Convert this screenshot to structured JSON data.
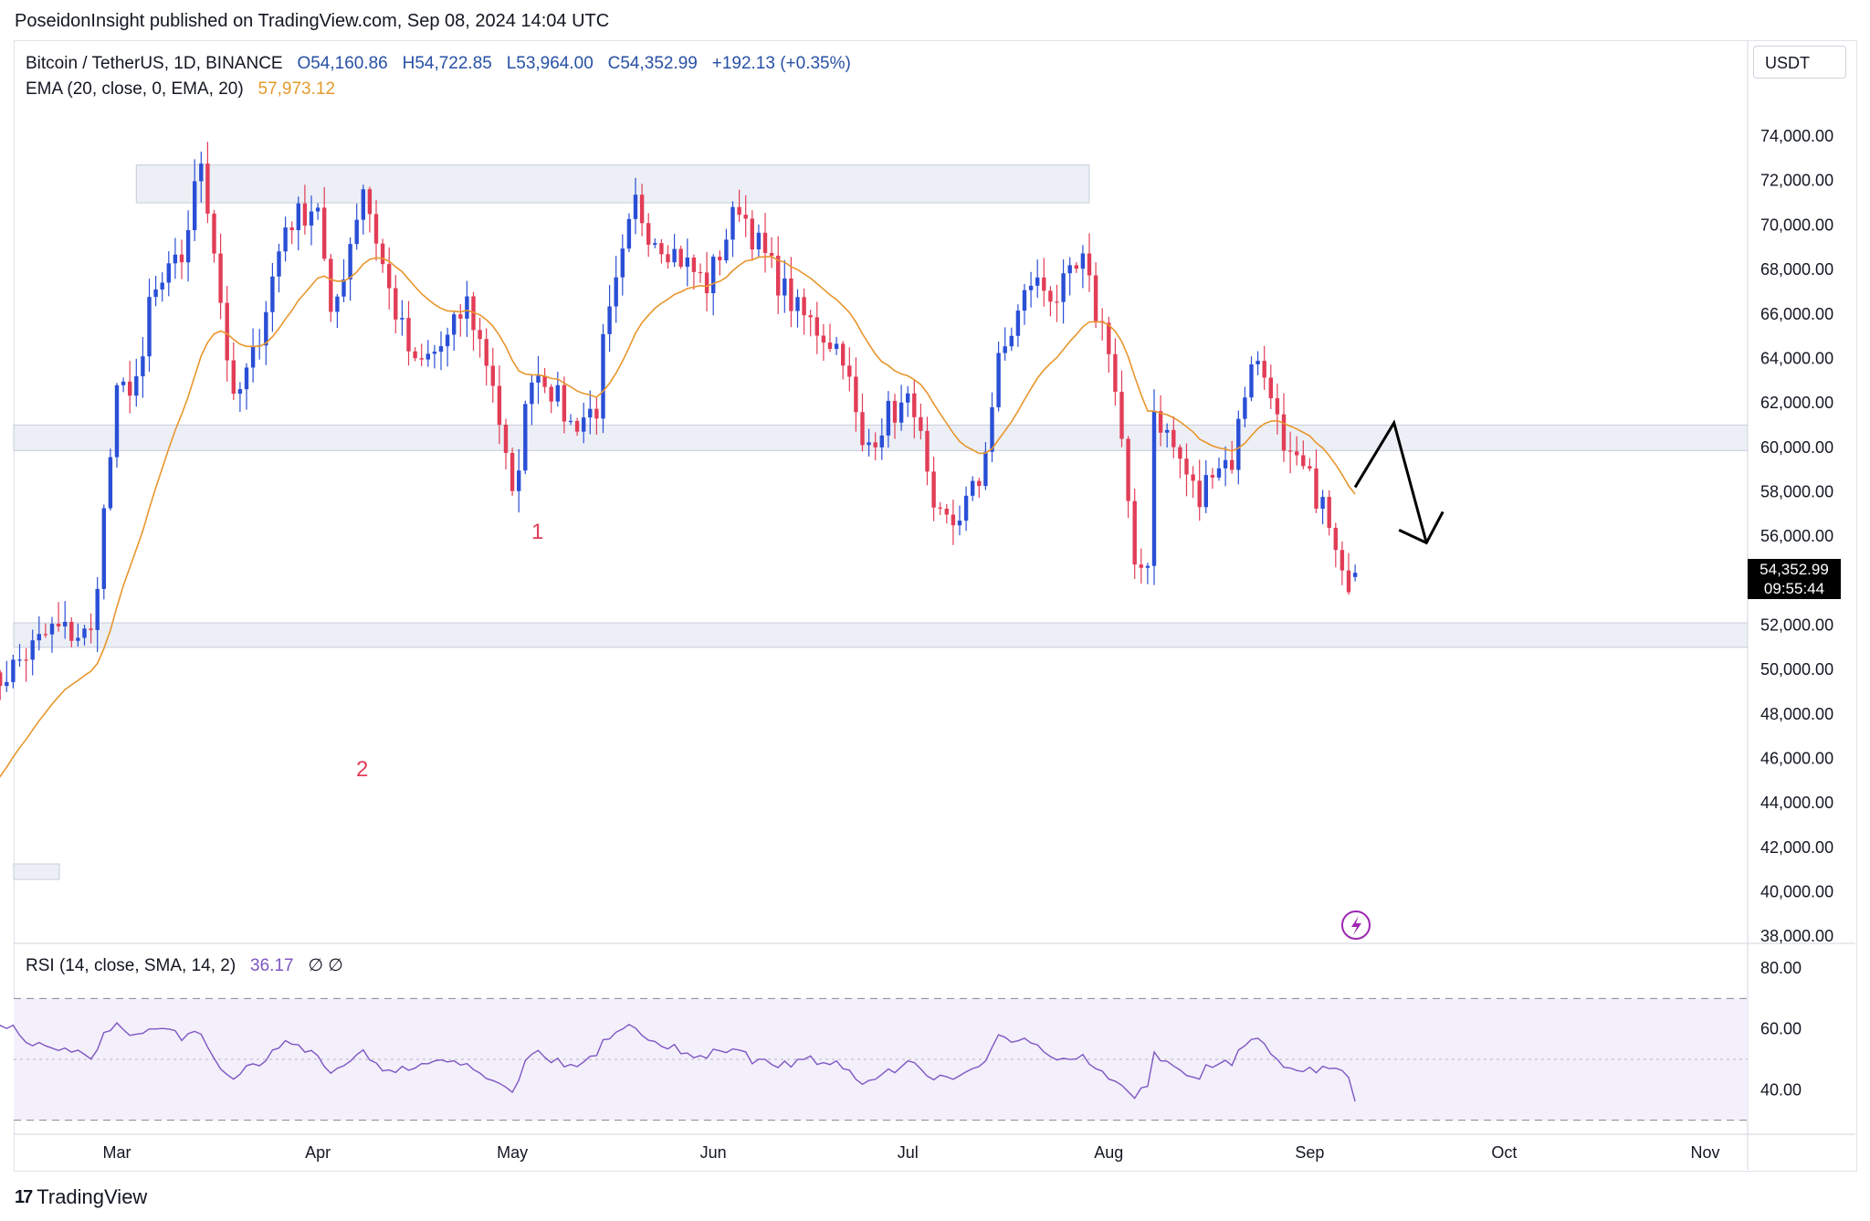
{
  "header": {
    "publisher_line": "PoseidonInsight published on TradingView.com, Sep 08, 2024 14:04 UTC"
  },
  "legend": {
    "symbol": "Bitcoin / TetherUS, 1D, BINANCE",
    "open": "O54,160.86",
    "high": "H54,722.85",
    "low": "L53,964.00",
    "close": "C54,352.99",
    "change": "+192.13 (+0.35%)",
    "ema_label": "EMA (20, close, 0, EMA, 20)",
    "ema_value": "57,973.12"
  },
  "rsi_legend": {
    "label": "RSI (14, close, SMA, 14, 2)",
    "value": "36.17",
    "extra": "∅ ∅"
  },
  "currency": "USDT",
  "price_tag": {
    "price": "54,352.99",
    "countdown": "09:55:44"
  },
  "annotations": {
    "label_1": "1",
    "label_2": "2"
  },
  "footer": {
    "logo_mark": "17",
    "brand": "TradingView"
  },
  "colors": {
    "up": "#2a4fd6",
    "down": "#e23d57",
    "ema": "#e8962e",
    "rsi": "#7e57c2",
    "zone": "#eceff6"
  },
  "chart_data": [
    {
      "type": "candlestick",
      "timeframe": "1D",
      "y_axis_ticks": [
        "74,000.00",
        "72,000.00",
        "70,000.00",
        "68,000.00",
        "66,000.00",
        "64,000.00",
        "62,000.00",
        "60,000.00",
        "58,000.00",
        "56,000.00",
        "54,000.00",
        "52,000.00",
        "50,000.00",
        "48,000.00",
        "46,000.00",
        "44,000.00",
        "42,000.00",
        "40,000.00",
        "38,000.00"
      ],
      "y_tick_values": [
        74000,
        72000,
        70000,
        68000,
        66000,
        64000,
        62000,
        60000,
        58000,
        56000,
        54000,
        52000,
        50000,
        48000,
        46000,
        44000,
        42000,
        40000,
        38000
      ],
      "ylim": [
        37800,
        75400
      ],
      "x_axis_ticks": [
        "Mar",
        "Apr",
        "May",
        "Jun",
        "Jul",
        "Aug",
        "Sep",
        "Oct",
        "Nov"
      ],
      "x_tick_dates": [
        "2024-03-01",
        "2024-04-01",
        "2024-05-01",
        "2024-06-01",
        "2024-07-01",
        "2024-08-01",
        "2024-09-01",
        "2024-10-01",
        "2024-11-01"
      ],
      "zones": [
        {
          "top": 72700,
          "bottom": 71000
        },
        {
          "top": 61000,
          "bottom": 59850
        },
        {
          "top": 52100,
          "bottom": 51000
        }
      ],
      "projection_arrow": {
        "points": [
          [
            "2024-09-08",
            58200
          ],
          [
            "2024-09-14",
            61100
          ],
          [
            "2024-09-19",
            55700
          ]
        ]
      },
      "close_anchors": [
        [
          "2024-02-10",
          49000
        ],
        [
          "2024-02-20",
          51800
        ],
        [
          "2024-02-26",
          51500
        ],
        [
          "2024-02-28",
          57000
        ],
        [
          "2024-03-01",
          62200
        ],
        [
          "2024-03-05",
          63500
        ],
        [
          "2024-03-06",
          66500
        ],
        [
          "2024-03-11",
          68500
        ],
        [
          "2024-03-14",
          73000
        ],
        [
          "2024-03-16",
          69000
        ],
        [
          "2024-03-19",
          61800
        ],
        [
          "2024-03-22",
          64000
        ],
        [
          "2024-03-27",
          70000
        ],
        [
          "2024-04-01",
          71000
        ],
        [
          "2024-04-03",
          65500
        ],
        [
          "2024-04-08",
          71800
        ],
        [
          "2024-04-12",
          67000
        ],
        [
          "2024-04-16",
          63500
        ],
        [
          "2024-04-21",
          64800
        ],
        [
          "2024-04-24",
          66500
        ],
        [
          "2024-04-28",
          63000
        ],
        [
          "2024-05-01",
          57500
        ],
        [
          "2024-05-04",
          63500
        ],
        [
          "2024-05-06",
          63200
        ],
        [
          "2024-05-10",
          61000
        ],
        [
          "2024-05-14",
          61800
        ],
        [
          "2024-05-15",
          64500
        ],
        [
          "2024-05-20",
          71000
        ],
        [
          "2024-05-22",
          69800
        ],
        [
          "2024-05-27",
          68500
        ],
        [
          "2024-05-31",
          67300
        ],
        [
          "2024-06-05",
          71000
        ],
        [
          "2024-06-07",
          69600
        ],
        [
          "2024-06-11",
          67500
        ],
        [
          "2024-06-14",
          66100
        ],
        [
          "2024-06-18",
          65100
        ],
        [
          "2024-06-21",
          64300
        ],
        [
          "2024-06-24",
          59800
        ],
        [
          "2024-06-28",
          61500
        ],
        [
          "2024-07-02",
          62000
        ],
        [
          "2024-07-05",
          56600
        ],
        [
          "2024-07-08",
          56600
        ],
        [
          "2024-07-12",
          58400
        ],
        [
          "2024-07-15",
          63700
        ],
        [
          "2024-07-20",
          67500
        ],
        [
          "2024-07-24",
          66800
        ],
        [
          "2024-07-28",
          68200
        ],
        [
          "2024-07-30",
          66100
        ],
        [
          "2024-08-01",
          64700
        ],
        [
          "2024-08-03",
          60300
        ],
        [
          "2024-08-05",
          54100
        ],
        [
          "2024-08-07",
          55100
        ],
        [
          "2024-08-08",
          61700
        ],
        [
          "2024-08-12",
          59400
        ],
        [
          "2024-08-15",
          57500
        ],
        [
          "2024-08-17",
          59300
        ],
        [
          "2024-08-20",
          59400
        ],
        [
          "2024-08-23",
          64100
        ],
        [
          "2024-08-26",
          62800
        ],
        [
          "2024-08-28",
          59400
        ],
        [
          "2024-08-31",
          58900
        ],
        [
          "2024-09-03",
          57400
        ],
        [
          "2024-09-06",
          53900
        ],
        [
          "2024-09-08",
          54353
        ]
      ],
      "last_bar": {
        "date": "2024-09-08",
        "open": 54160.86,
        "high": 54722.85,
        "low": 53964.0,
        "close": 54352.99
      }
    },
    {
      "type": "line",
      "name": "RSI",
      "y_axis_ticks": [
        "80.00",
        "60.00",
        "40.00"
      ],
      "y_tick_values": [
        80,
        60,
        40
      ],
      "ylim": [
        26,
        86
      ],
      "bands": {
        "upper": 70,
        "middle": 50,
        "lower": 30
      },
      "last_value": 36.17
    }
  ]
}
